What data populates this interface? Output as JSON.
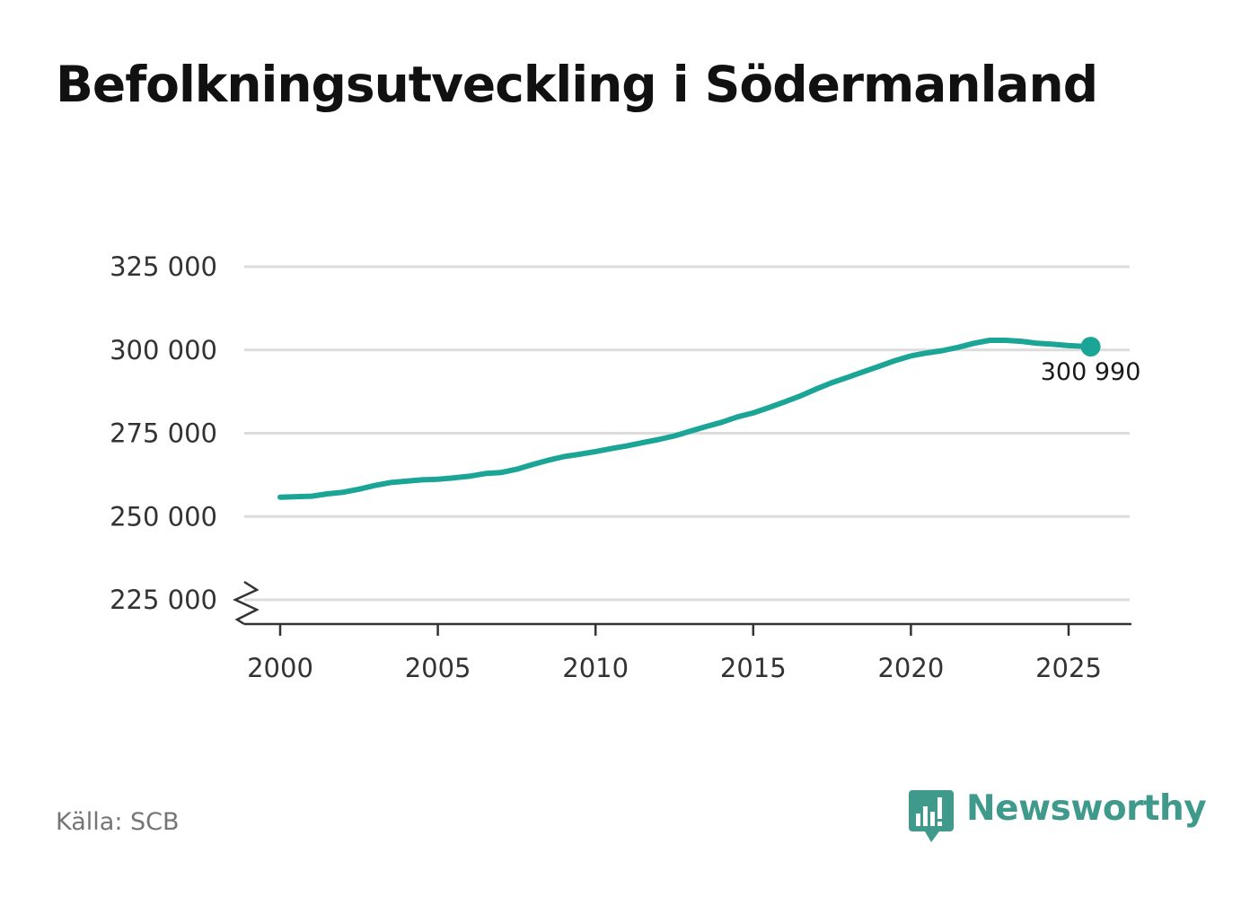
{
  "title": "Befolkningsutveckling i Södermanland",
  "source": "Källa: SCB",
  "brand": {
    "name": "Newsworthy",
    "icon": "bar-chart-speech-bubble-icon",
    "color": "#3f9a8c"
  },
  "chart_data": {
    "type": "line",
    "title": "Befolkningsutveckling i Södermanland",
    "xlabel": "",
    "ylabel": "",
    "xlim": [
      1999.8,
      2026.8
    ],
    "ylim": [
      217500,
      330000
    ],
    "axis_break": true,
    "grid": true,
    "line_color": "#1aa596",
    "x_ticks": [
      2000,
      2005,
      2010,
      2015,
      2020,
      2025
    ],
    "y_ticks": [
      225000,
      250000,
      275000,
      300000,
      325000
    ],
    "y_tick_labels": [
      "225 000",
      "250 000",
      "275 000",
      "300 000",
      "325 000"
    ],
    "series": [
      {
        "name": "Södermanland",
        "x": [
          2000.0,
          2001.0,
          2001.5,
          2002.0,
          2002.5,
          2003.0,
          2003.5,
          2004.0,
          2004.5,
          2005.0,
          2005.5,
          2006.0,
          2006.5,
          2007.0,
          2007.5,
          2008.0,
          2008.5,
          2009.0,
          2009.5,
          2010.0,
          2010.5,
          2011.0,
          2011.5,
          2012.0,
          2012.5,
          2013.0,
          2013.5,
          2014.0,
          2014.5,
          2015.0,
          2015.5,
          2016.0,
          2016.5,
          2017.0,
          2017.5,
          2018.0,
          2018.5,
          2019.0,
          2019.5,
          2020.0,
          2020.5,
          2021.0,
          2021.5,
          2022.0,
          2022.5,
          2023.0,
          2023.5,
          2024.0,
          2024.5,
          2025.0,
          2025.7
        ],
        "values": [
          255800,
          256100,
          256800,
          257300,
          258200,
          259300,
          260200,
          260600,
          261000,
          261200,
          261600,
          262100,
          262900,
          263200,
          264200,
          265600,
          266900,
          268000,
          268700,
          269500,
          270400,
          271200,
          272200,
          273100,
          274200,
          275600,
          277000,
          278300,
          279900,
          281100,
          282700,
          284400,
          286200,
          288300,
          290200,
          291800,
          293500,
          295100,
          296800,
          298200,
          299100,
          299800,
          300800,
          302000,
          302900,
          302900,
          302600,
          302000,
          301700,
          301300,
          300990
        ]
      }
    ],
    "end_point": {
      "x": 2025.7,
      "value": 300990,
      "label": "300 990"
    }
  }
}
